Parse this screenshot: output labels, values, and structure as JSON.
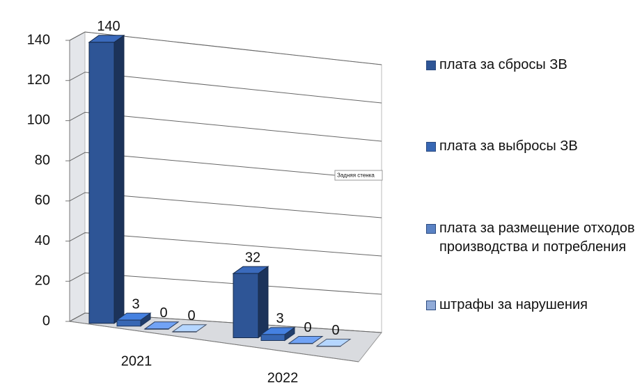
{
  "chart_data": {
    "type": "bar3d",
    "categories": [
      "2021",
      "2022"
    ],
    "series": [
      {
        "name": "плата за сбросы ЗВ",
        "color": "#2e5596",
        "values": [
          140,
          32
        ]
      },
      {
        "name": "плата за выбросы ЗВ",
        "color": "#3767b4",
        "values": [
          3,
          3
        ]
      },
      {
        "name": "плата за размещение отходов производства и потребления",
        "color": "#5a82c4",
        "values": [
          0,
          0
        ]
      },
      {
        "name": "штрафы за нарушения",
        "color": "#91abd8",
        "values": [
          0,
          0
        ]
      }
    ],
    "ylim": [
      0,
      140
    ],
    "yticks": [
      0,
      20,
      40,
      60,
      80,
      100,
      120,
      140
    ],
    "grid": true,
    "tooltip": "Задняя стенка",
    "legend": "right"
  }
}
